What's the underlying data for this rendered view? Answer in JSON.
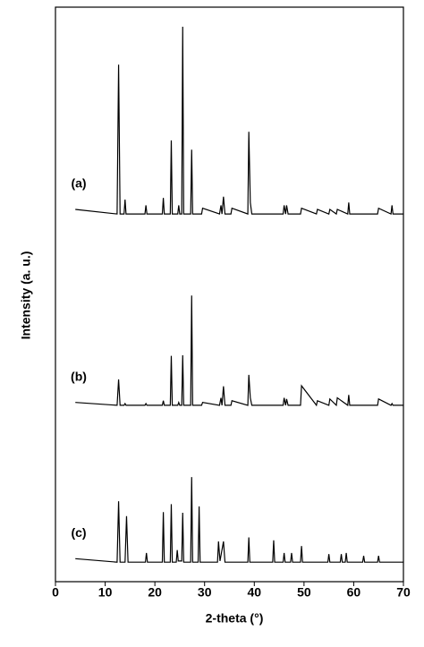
{
  "chart_data": {
    "type": "line",
    "x_label": "2-theta (°)",
    "y_label": "Intensity (a. u.)",
    "xlim": [
      0,
      70
    ],
    "xticks": [
      0,
      10,
      20,
      30,
      40,
      50,
      60,
      70
    ],
    "ylim": [
      0,
      100
    ],
    "series": [
      {
        "name": "(a)",
        "color": "#000000",
        "x": [
          4,
          12.4,
          12.7,
          13.0,
          13.8,
          14.0,
          14.2,
          18.0,
          18.2,
          18.4,
          21.5,
          21.7,
          21.9,
          23.1,
          23.3,
          23.5,
          24.6,
          24.8,
          25.0,
          25.4,
          25.6,
          25.8,
          27.2,
          27.4,
          27.6,
          29.4,
          29.6,
          33.0,
          33.3,
          33.5,
          33.8,
          34.1,
          35.3,
          35.5,
          38.7,
          38.9,
          39.2,
          39.5,
          45.8,
          46.0,
          46.3,
          46.5,
          46.8,
          49.3,
          49.5,
          52.5,
          52.7,
          55.0,
          55.2,
          56.5,
          56.7,
          58.8,
          59.0,
          59.2,
          64.8,
          65.0,
          67.5,
          67.7,
          67.9,
          70
        ],
        "values": [
          64.8,
          64,
          90,
          64,
          64,
          66.5,
          64,
          64,
          65.5,
          64,
          64,
          66.8,
          64,
          64,
          76.8,
          64,
          64,
          65.5,
          64,
          64,
          96.6,
          64,
          64,
          75.2,
          64,
          64,
          65,
          64,
          65.5,
          64,
          67,
          64,
          64,
          65,
          64,
          78.3,
          66,
          64,
          64,
          65.5,
          64,
          65.5,
          64,
          64,
          65,
          64,
          64.8,
          64,
          64.8,
          64,
          64.8,
          64,
          66,
          64,
          64,
          65,
          64,
          65.5,
          64,
          64
        ]
      },
      {
        "name": "(b)",
        "color": "#000000",
        "x": [
          4,
          12.4,
          12.7,
          13.0,
          13.8,
          14.0,
          14.2,
          18.0,
          18.2,
          18.4,
          21.5,
          21.7,
          21.9,
          23.1,
          23.3,
          23.5,
          24.6,
          24.8,
          25.0,
          25.4,
          25.6,
          25.8,
          27.2,
          27.4,
          27.6,
          29.4,
          29.6,
          33.0,
          33.3,
          33.5,
          33.8,
          34.1,
          35.3,
          35.5,
          38.7,
          38.9,
          39.2,
          39.5,
          45.8,
          46.0,
          46.3,
          46.5,
          46.8,
          49.3,
          49.5,
          52.5,
          52.7,
          55.0,
          55.2,
          56.5,
          56.7,
          58.8,
          59.0,
          59.2,
          64.8,
          65.0,
          67.5,
          67.7,
          67.9,
          70
        ],
        "values": [
          31.2,
          30.7,
          35.2,
          30.7,
          30.7,
          31,
          30.7,
          30.7,
          31,
          30.7,
          30.7,
          31.5,
          30.7,
          30.7,
          39.3,
          30.7,
          30.7,
          31.2,
          30.7,
          30.7,
          39.4,
          30.7,
          30.7,
          49.8,
          30.7,
          30.7,
          31.2,
          30.7,
          32,
          30.7,
          34,
          30.7,
          30.7,
          31.5,
          30.7,
          36,
          32,
          30.7,
          30.7,
          32,
          30.7,
          31.8,
          30.7,
          30.7,
          34.1,
          30.7,
          31.5,
          30.7,
          31.8,
          30.7,
          32,
          30.7,
          32.5,
          30.7,
          30.7,
          31.8,
          30.7,
          31,
          30.7,
          30.7
        ]
      },
      {
        "name": "(c)",
        "color": "#000000",
        "x": [
          4,
          12.4,
          12.7,
          13.0,
          14.0,
          14.3,
          14.6,
          18.1,
          18.3,
          18.5,
          21.5,
          21.7,
          21.9,
          23.1,
          23.3,
          23.5,
          24.3,
          24.5,
          24.7,
          25.4,
          25.6,
          25.8,
          27.2,
          27.4,
          27.6,
          28.7,
          28.9,
          29.1,
          32.6,
          32.8,
          33.1,
          33.8,
          34.1,
          38.7,
          38.9,
          39.1,
          43.7,
          43.9,
          44.1,
          45.8,
          46.0,
          46.2,
          47.3,
          47.5,
          47.7,
          49.3,
          49.5,
          49.7,
          54.8,
          55.0,
          55.2,
          57.3,
          57.5,
          57.7,
          58.3,
          58.5,
          58.7,
          61.8,
          62.0,
          62.2,
          64.8,
          65.0,
          65.2,
          70
        ],
        "values": [
          4,
          3.4,
          14,
          3.4,
          3.4,
          11.4,
          3.4,
          3.4,
          5,
          3.4,
          3.4,
          12.1,
          3.4,
          3.4,
          13.5,
          3.4,
          3.4,
          5.5,
          3.6,
          3.6,
          12,
          3.4,
          3.4,
          18.2,
          3.4,
          3.4,
          13.1,
          3.4,
          3.4,
          7,
          3.6,
          7,
          3.4,
          3.4,
          7.7,
          3.4,
          3.4,
          7.2,
          3.4,
          3.4,
          5,
          3.4,
          3.4,
          5,
          3.4,
          3.4,
          6.2,
          3.4,
          3.4,
          4.8,
          3.4,
          3.4,
          4.8,
          3.4,
          3.4,
          5,
          3.4,
          3.4,
          4.5,
          3.4,
          3.4,
          4.5,
          3.4,
          3.4
        ]
      }
    ]
  }
}
